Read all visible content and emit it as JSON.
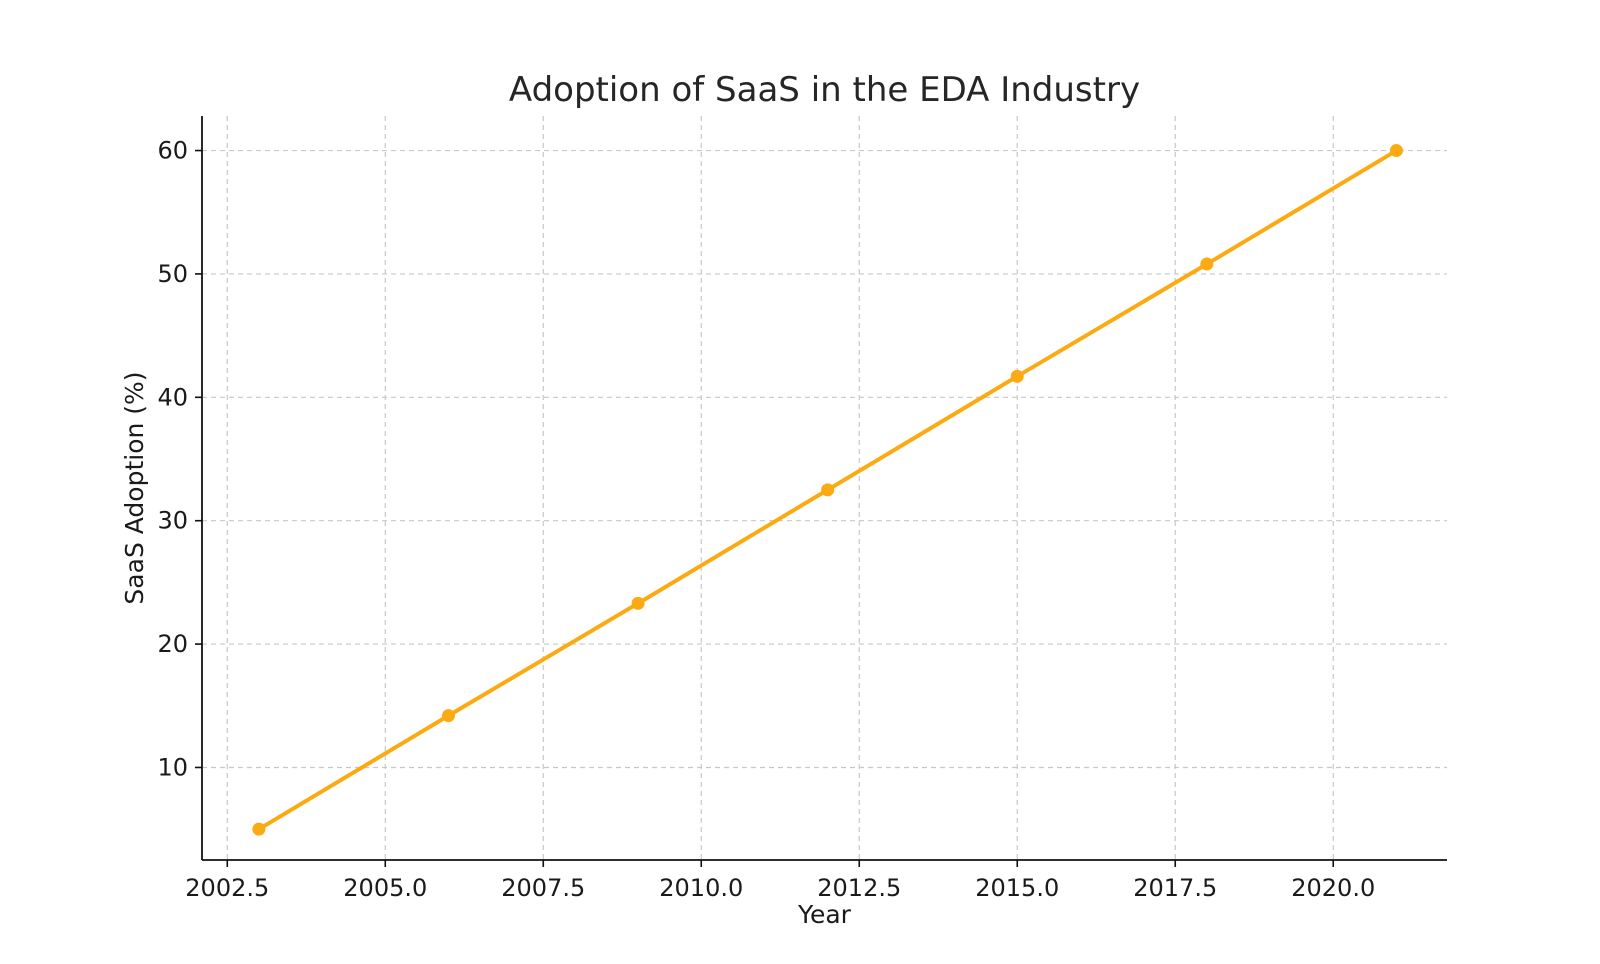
{
  "chart_data": {
    "type": "line",
    "title": "Adoption of SaaS in the EDA Industry",
    "xlabel": "Year",
    "ylabel": "SaaS Adoption (%)",
    "xlim": [
      2002.1,
      2021.8
    ],
    "ylim": [
      2.5,
      62.8
    ],
    "xticks": [
      2002.5,
      2005.0,
      2007.5,
      2010.0,
      2012.5,
      2015.0,
      2017.5,
      2020.0
    ],
    "xtick_labels": [
      "2002.5",
      "2005.0",
      "2007.5",
      "2010.0",
      "2012.5",
      "2015.0",
      "2017.5",
      "2020.0"
    ],
    "yticks": [
      10,
      20,
      30,
      40,
      50,
      60
    ],
    "ytick_labels": [
      "10",
      "20",
      "30",
      "40",
      "50",
      "60"
    ],
    "grid": true,
    "series": [
      {
        "color": "#FBAA12",
        "x": [
          2003,
          2006,
          2009,
          2012,
          2015,
          2018,
          2021
        ],
        "y": [
          5.0,
          14.2,
          23.3,
          32.5,
          41.7,
          50.8,
          60.0
        ]
      }
    ]
  }
}
